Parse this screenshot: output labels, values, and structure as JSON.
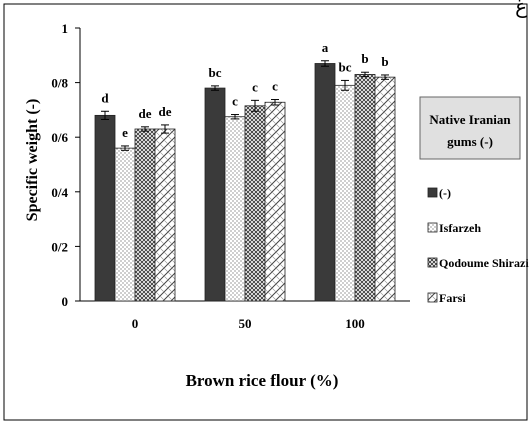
{
  "corner_glyph": "غ",
  "legend_title_line1": "Native Iranian",
  "legend_title_line2": "gums (-)",
  "chart_data": {
    "type": "bar",
    "title": "",
    "xlabel": "Brown rice flour (%)",
    "ylabel": "Specific weight (-)",
    "ylim": [
      0,
      1
    ],
    "yticks": [
      "0",
      "0/2",
      "0/4",
      "0/6",
      "0/8",
      "1"
    ],
    "ytick_values": [
      0,
      0.2,
      0.4,
      0.6,
      0.8,
      1.0
    ],
    "categories": [
      "0",
      "50",
      "100"
    ],
    "legend_position": "right",
    "grid": false,
    "series": [
      {
        "name": "(-)",
        "pattern": "solid-dark",
        "color": "#3a3a3a",
        "values": [
          0.68,
          0.78,
          0.87
        ],
        "errors": [
          0.015,
          0.008,
          0.01
        ],
        "letters": [
          "d",
          "bc",
          "a"
        ]
      },
      {
        "name": "Isfarzeh",
        "pattern": "dots",
        "color": "#ffffff",
        "values": [
          0.56,
          0.675,
          0.79
        ],
        "errors": [
          0.008,
          0.008,
          0.018
        ],
        "letters": [
          "e",
          "c",
          "bc"
        ]
      },
      {
        "name": "Qodoume Shirazi",
        "pattern": "crosshatch",
        "color": "#888888",
        "values": [
          0.63,
          0.715,
          0.83
        ],
        "errors": [
          0.008,
          0.02,
          0.008
        ],
        "letters": [
          "de",
          "c",
          "b"
        ]
      },
      {
        "name": "Farsi",
        "pattern": "diagonal",
        "color": "#aaaaaa",
        "values": [
          0.63,
          0.728,
          0.82
        ],
        "errors": [
          0.015,
          0.01,
          0.008
        ],
        "letters": [
          "de",
          "c",
          "b"
        ]
      }
    ]
  }
}
